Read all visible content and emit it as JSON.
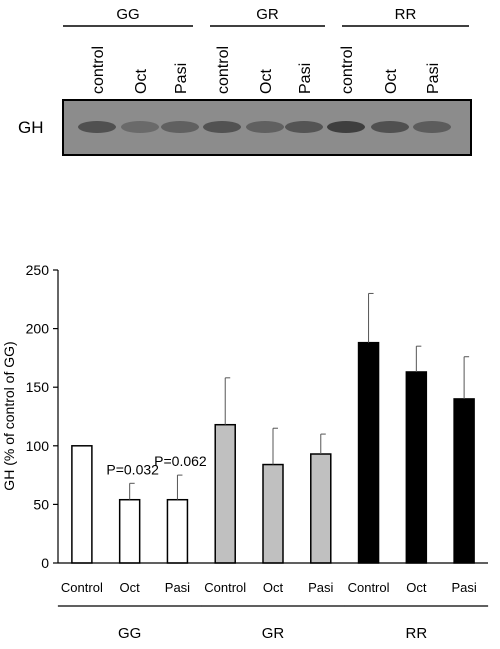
{
  "blot": {
    "row_label": "GH",
    "groups": [
      {
        "name": "GG",
        "lanes": [
          "control",
          "Oct",
          "Pasi"
        ]
      },
      {
        "name": "GR",
        "lanes": [
          "control",
          "Oct",
          "Pasi"
        ]
      },
      {
        "name": "RR",
        "lanes": [
          "control",
          "Oct",
          "Pasi"
        ]
      }
    ]
  },
  "chart_data": {
    "type": "bar",
    "ylabel": "GH (% of control of GG)",
    "ylim": [
      0,
      250
    ],
    "yticks": [
      0,
      50,
      100,
      150,
      200,
      250
    ],
    "categories": [
      "Control",
      "Oct",
      "Pasi",
      "Control",
      "Oct",
      "Pasi",
      "Control",
      "Oct",
      "Pasi"
    ],
    "group_labels": [
      "GG",
      "GR",
      "RR"
    ],
    "values": [
      100,
      54,
      54,
      118,
      84,
      93,
      188,
      163,
      140
    ],
    "errors": [
      0,
      14,
      21,
      40,
      31,
      17,
      42,
      22,
      36
    ],
    "bar_colors": [
      "#ffffff",
      "#ffffff",
      "#ffffff",
      "#c0c0c0",
      "#c0c0c0",
      "#c0c0c0",
      "#000000",
      "#000000",
      "#000000"
    ],
    "annotations": [
      {
        "text": "P=0.032",
        "bar_index": 1
      },
      {
        "text": "P=0.062",
        "bar_index": 2
      }
    ]
  }
}
